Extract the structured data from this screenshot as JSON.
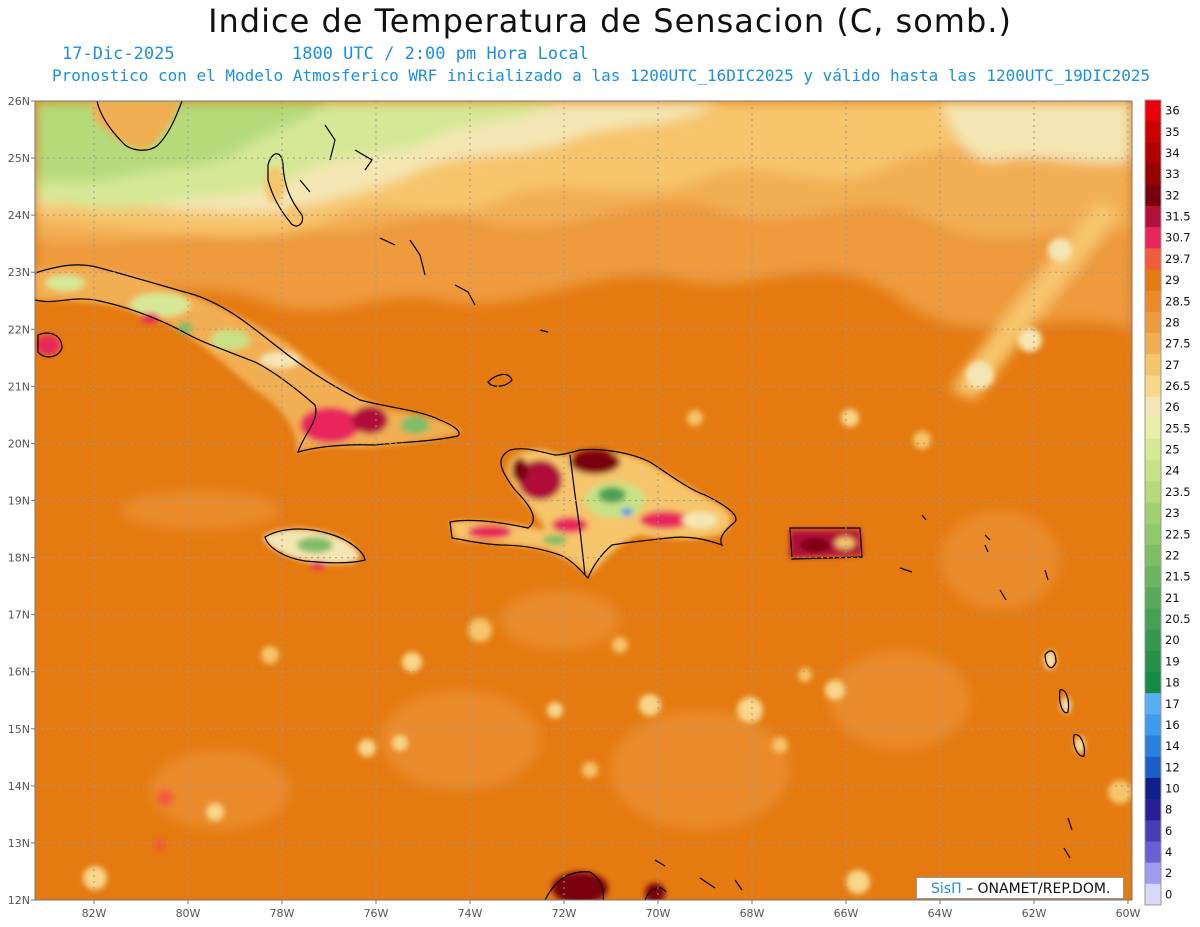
{
  "title": "Indice de Temperatura de Sensacion (C, somb.)",
  "date_label": "17-Dic-2025",
  "time_label": "1800 UTC / 2:00 pm Hora Local",
  "forecast_label": "Pronostico con el Modelo Atmosferico WRF inicializado a las 1200UTC_16DIC2025 y válido hasta las  1200UTC_19DIC2025",
  "credit": {
    "logo": "SisΠ",
    "text": "– ONAMET/REP.DOM."
  },
  "lat_labels": [
    "26N",
    "25N",
    "24N",
    "23N",
    "22N",
    "21N",
    "20N",
    "19N",
    "18N",
    "17N",
    "16N",
    "15N",
    "14N",
    "13N",
    "12N"
  ],
  "lon_labels": [
    "82W",
    "80W",
    "78W",
    "76W",
    "74W",
    "72W",
    "70W",
    "68W",
    "66W",
    "64W",
    "62W",
    "60W"
  ],
  "colorbar": [
    {
      "label": "36",
      "color": "#e8000b"
    },
    {
      "label": "35",
      "color": "#cc0000"
    },
    {
      "label": "34",
      "color": "#b00000"
    },
    {
      "label": "33",
      "color": "#960000"
    },
    {
      "label": "32",
      "color": "#7a0010"
    },
    {
      "label": "31.5",
      "color": "#b0103a"
    },
    {
      "label": "30.7",
      "color": "#e8265c"
    },
    {
      "label": "29.7",
      "color": "#f45a3c"
    },
    {
      "label": "29",
      "color": "#e47a10"
    },
    {
      "label": "28.5",
      "color": "#ea8a2a"
    },
    {
      "label": "28",
      "color": "#ee9a3e"
    },
    {
      "label": "27.5",
      "color": "#f2ae52"
    },
    {
      "label": "27",
      "color": "#f6c46a"
    },
    {
      "label": "26.5",
      "color": "#f8d68a"
    },
    {
      "label": "26",
      "color": "#f4e6b4"
    },
    {
      "label": "25.5",
      "color": "#e6eea8"
    },
    {
      "label": "25",
      "color": "#d6e896"
    },
    {
      "label": "24",
      "color": "#c6e284"
    },
    {
      "label": "23.5",
      "color": "#b4da7a"
    },
    {
      "label": "23",
      "color": "#a2d072"
    },
    {
      "label": "22.5",
      "color": "#90c86c"
    },
    {
      "label": "22",
      "color": "#7ebe66"
    },
    {
      "label": "21.5",
      "color": "#6cb460"
    },
    {
      "label": "21",
      "color": "#5aa95a"
    },
    {
      "label": "20.5",
      "color": "#48a054"
    },
    {
      "label": "20",
      "color": "#36984e"
    },
    {
      "label": "19",
      "color": "#24904a"
    },
    {
      "label": "18",
      "color": "#148a44"
    },
    {
      "label": "17",
      "color": "#58aef4"
    },
    {
      "label": "16",
      "color": "#3e9aec"
    },
    {
      "label": "14",
      "color": "#2a80de"
    },
    {
      "label": "12",
      "color": "#1a5ec8"
    },
    {
      "label": "10",
      "color": "#10208a"
    },
    {
      "label": "8",
      "color": "#2a1e96"
    },
    {
      "label": "6",
      "color": "#4a3ab6"
    },
    {
      "label": "4",
      "color": "#6e5ed6"
    },
    {
      "label": "2",
      "color": "#a49af0"
    },
    {
      "label": "0",
      "color": "#d8d8fa"
    }
  ]
}
